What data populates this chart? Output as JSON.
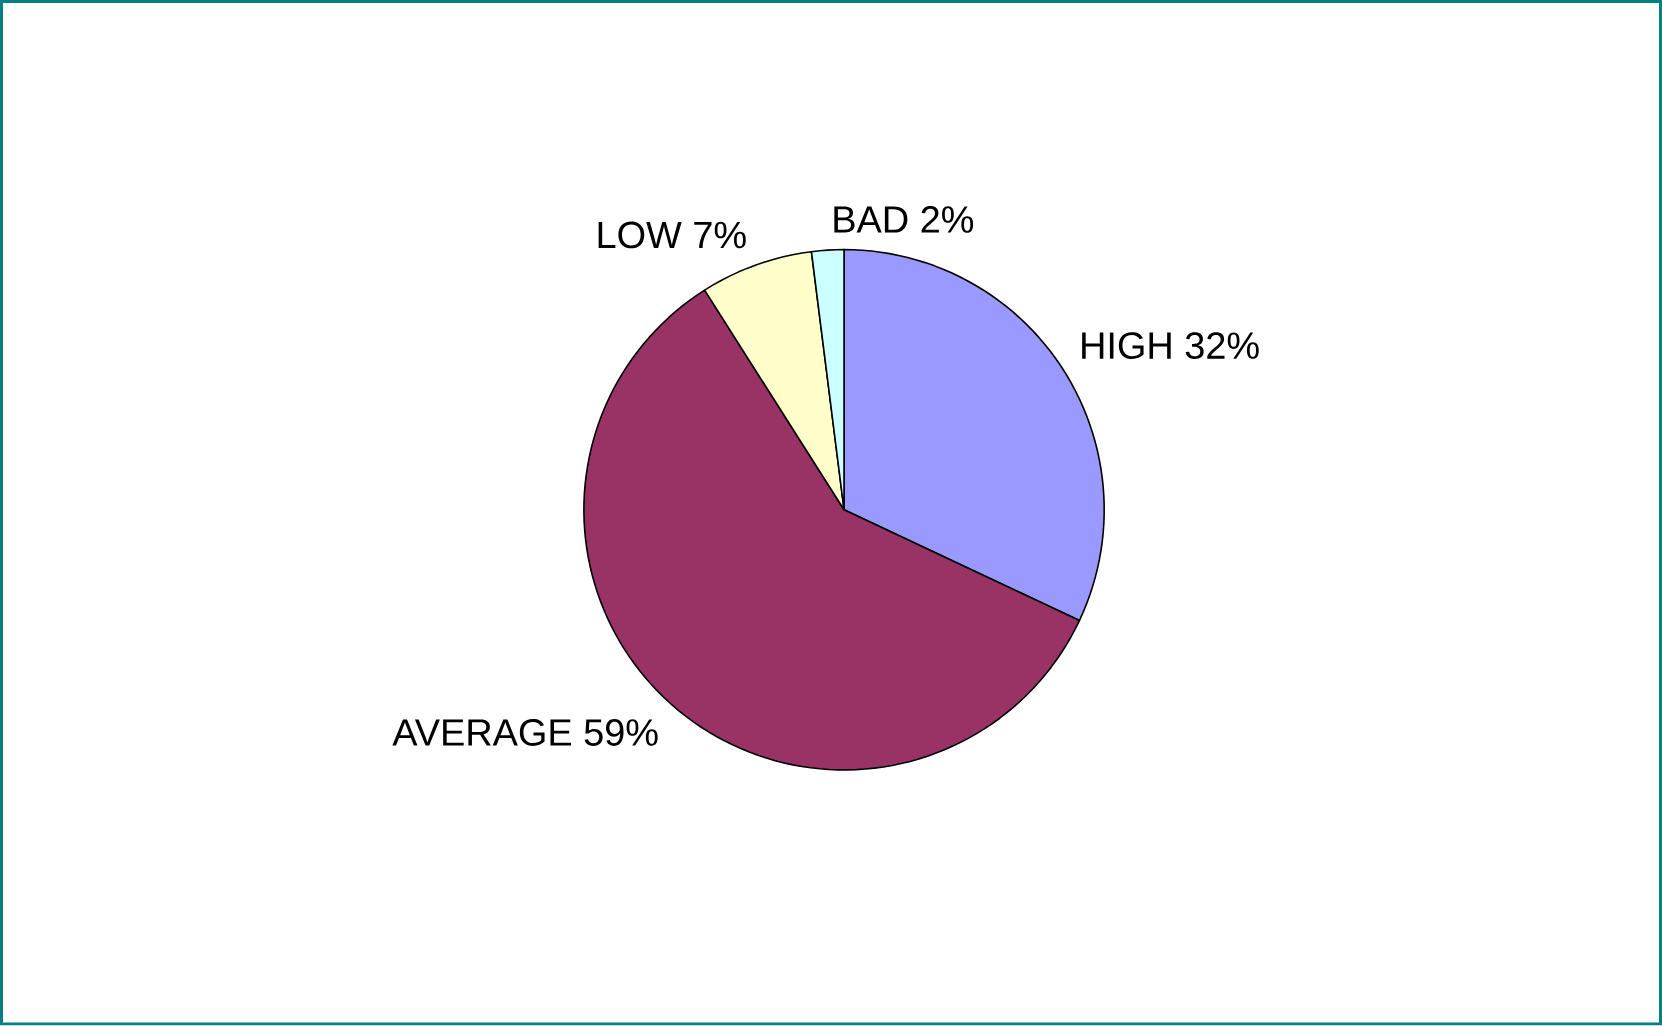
{
  "chart_data": {
    "type": "pie",
    "categories": [
      "HIGH",
      "AVERAGE",
      "LOW",
      "BAD"
    ],
    "values": [
      32,
      59,
      7,
      2
    ],
    "value_labels": [
      "32%",
      "59%",
      "7%",
      "2%"
    ],
    "colors": [
      "#9999ff",
      "#993366",
      "#ffffcc",
      "#ccffff"
    ]
  }
}
